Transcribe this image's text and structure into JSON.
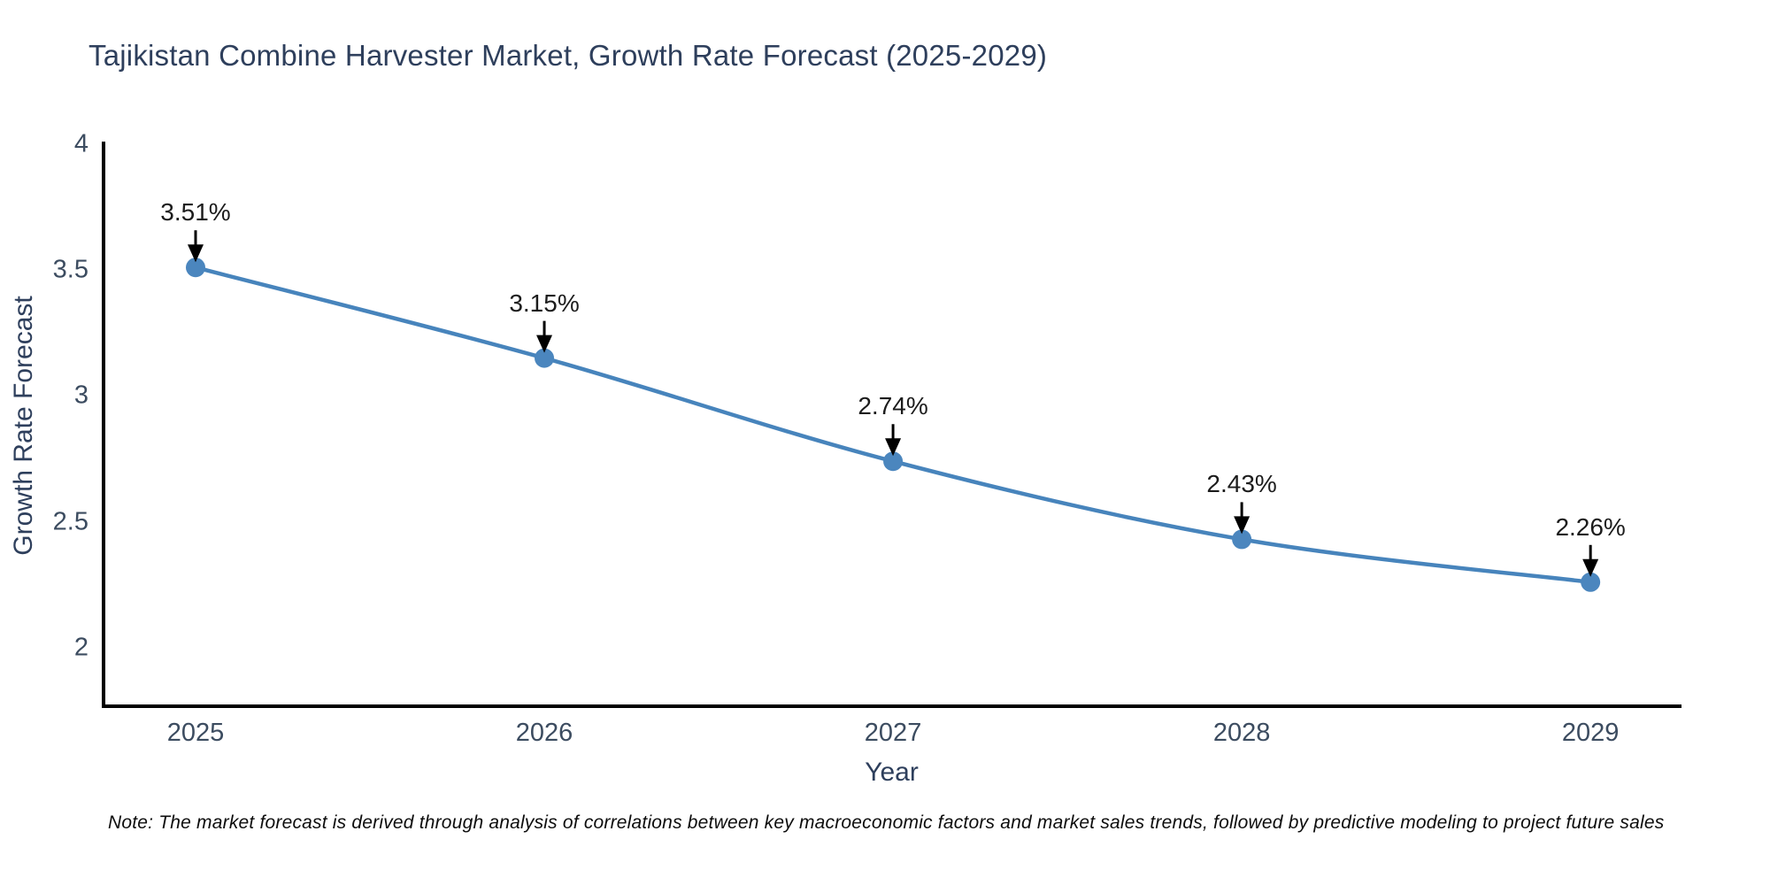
{
  "chart": {
    "title": "Tajikistan Combine Harvester Market, Growth Rate Forecast (2025-2029)",
    "ylabel": "Growth Rate Forecast",
    "xlabel": "Year",
    "note": "Note: The market forecast is derived through analysis of correlations between key macroeconomic factors and market sales trends, followed by predictive modeling to project future sales"
  },
  "chart_data": {
    "type": "line",
    "title": "Tajikistan Combine Harvester Market, Growth Rate Forecast (2025-2029)",
    "xlabel": "Year",
    "ylabel": "Growth Rate Forecast",
    "x": [
      2025,
      2026,
      2027,
      2028,
      2029
    ],
    "values": [
      3.51,
      3.15,
      2.74,
      2.43,
      2.26
    ],
    "point_labels": [
      "3.51%",
      "3.15%",
      "2.74%",
      "2.43%",
      "2.26%"
    ],
    "xticklabels": [
      "2025",
      "2026",
      "2027",
      "2028",
      "2029"
    ],
    "yticks": [
      2,
      2.5,
      3,
      3.5,
      4
    ],
    "ytick_labels": [
      "2",
      "2.5",
      "3",
      "3.5",
      "4"
    ],
    "xlim": [
      2024.731,
      2029.261
    ],
    "ylim": [
      1.76,
      4.01
    ],
    "grid": false,
    "legend": null,
    "smooth": true,
    "colors": {
      "line": "#4784bc",
      "marker": "#4b86be",
      "annotation_arrow": "#000000",
      "axis_spine": "#000000",
      "title_text": "#2e3f5c",
      "tick_text": "#3c4c60"
    },
    "note": "Note: The market forecast is derived through analysis of correlations between key macroeconomic factors and market sales trends, followed by predictive modeling to project future sales"
  }
}
